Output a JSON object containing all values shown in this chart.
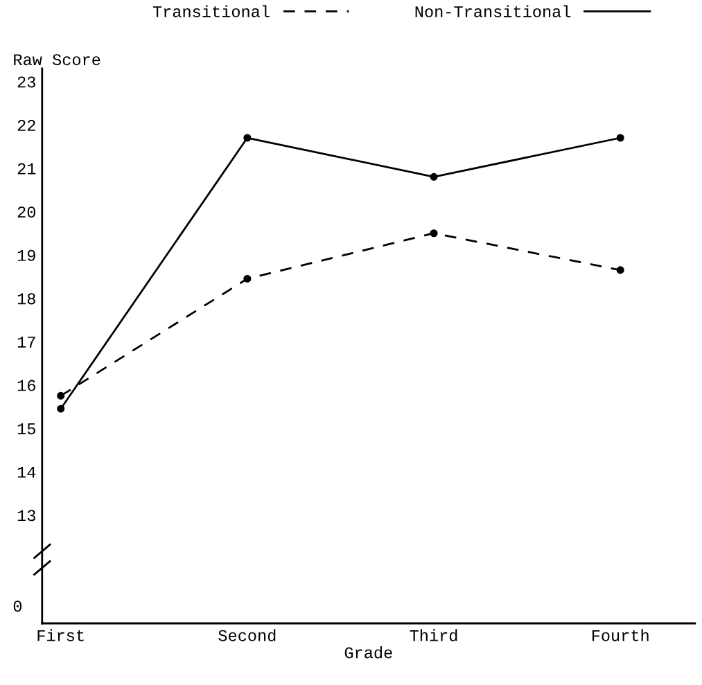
{
  "chart_data": {
    "type": "line",
    "xlabel": "Grade",
    "ylabel": "Raw Score",
    "categories": [
      "First",
      "Second",
      "Third",
      "Fourth"
    ],
    "series": [
      {
        "name": "Transitional",
        "color": "#000000",
        "line_style": "dashed",
        "values": [
          15.75,
          18.45,
          19.5,
          18.65
        ]
      },
      {
        "name": "Non-Transitional",
        "color": "#000000",
        "line_style": "solid",
        "values": [
          15.45,
          21.7,
          20.8,
          21.7
        ]
      }
    ],
    "marker": "circle",
    "ylim": [
      10.5,
      23.3
    ],
    "yticks": [
      13,
      14,
      15,
      16,
      17,
      18,
      19,
      20,
      21,
      22,
      23
    ],
    "annotations": [
      "0"
    ],
    "grid": false,
    "legend": "top"
  }
}
